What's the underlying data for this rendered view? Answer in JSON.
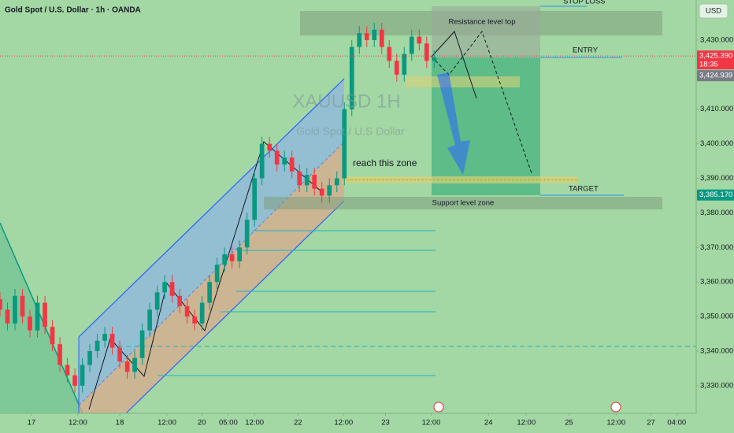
{
  "chart_data": {
    "type": "candlestick",
    "title": "Gold Spot / U.S. Dollar · 1h · OANDA",
    "watermark": "XAUUSD 1H",
    "watermark_subtitle": "Gold Spot / U.S Dollar",
    "currency": "USD",
    "countdown": "18:35",
    "up_color": "#089981",
    "down_color": "#f23645",
    "x": [
      0,
      2,
      4,
      6,
      8,
      10,
      12,
      14,
      16,
      18,
      20,
      22,
      24,
      26,
      28,
      30,
      32,
      34,
      36,
      38,
      40,
      42,
      44,
      46,
      48,
      50,
      52,
      54,
      56,
      58,
      60,
      62,
      64,
      66,
      68,
      70,
      72,
      74,
      76,
      78,
      80,
      82,
      84,
      86,
      88,
      90,
      92,
      94,
      96,
      98,
      100,
      102,
      104,
      106,
      108,
      110,
      112,
      114,
      116
    ],
    "open": [
      3355,
      3352,
      3348,
      3356,
      3350,
      3346,
      3354,
      3347,
      3342,
      3336,
      3333,
      3330,
      3336,
      3340,
      3343,
      3345,
      3341,
      3337,
      3334,
      3338,
      3346,
      3352,
      3357,
      3360,
      3356,
      3353,
      3350,
      3348,
      3354,
      3360,
      3365,
      3368,
      3366,
      3370,
      3378,
      3390,
      3400,
      3398,
      3394,
      3396,
      3392,
      3388,
      3391,
      3387,
      3385,
      3388,
      3390,
      3410,
      3428,
      3432,
      3430,
      3433,
      3428,
      3424,
      3420,
      3426,
      3431,
      3429,
      3424
    ],
    "high": [
      3357,
      3354,
      3358,
      3358,
      3352,
      3356,
      3356,
      3349,
      3344,
      3338,
      3335,
      3338,
      3342,
      3345,
      3347,
      3347,
      3343,
      3339,
      3340,
      3348,
      3354,
      3359,
      3362,
      3362,
      3358,
      3355,
      3352,
      3356,
      3362,
      3367,
      3370,
      3370,
      3372,
      3380,
      3392,
      3402,
      3402,
      3400,
      3398,
      3398,
      3394,
      3393,
      3393,
      3389,
      3390,
      3392,
      3412,
      3430,
      3434,
      3434,
      3435,
      3435,
      3430,
      3426,
      3428,
      3433,
      3433,
      3431,
      3427
    ],
    "low": [
      3350,
      3346,
      3346,
      3348,
      3344,
      3344,
      3345,
      3340,
      3334,
      3331,
      3328,
      3328,
      3334,
      3338,
      3341,
      3339,
      3335,
      3332,
      3332,
      3336,
      3344,
      3350,
      3355,
      3354,
      3351,
      3348,
      3346,
      3346,
      3352,
      3358,
      3363,
      3364,
      3364,
      3368,
      3376,
      3388,
      3396,
      3392,
      3392,
      3390,
      3386,
      3386,
      3385,
      3383,
      3383,
      3386,
      3388,
      3408,
      3426,
      3428,
      3428,
      3426,
      3422,
      3418,
      3418,
      3424,
      3427,
      3422,
      3422
    ],
    "close": [
      3352,
      3348,
      3356,
      3350,
      3346,
      3354,
      3347,
      3342,
      3336,
      3333,
      3330,
      3336,
      3340,
      3343,
      3345,
      3341,
      3337,
      3334,
      3338,
      3346,
      3352,
      3357,
      3360,
      3356,
      3353,
      3350,
      3348,
      3354,
      3360,
      3365,
      3368,
      3366,
      3370,
      3378,
      3390,
      3400,
      3398,
      3394,
      3396,
      3392,
      3388,
      3391,
      3387,
      3385,
      3388,
      3390,
      3410,
      3428,
      3432,
      3430,
      3433,
      3428,
      3424,
      3420,
      3426,
      3431,
      3429,
      3424,
      3425
    ],
    "xlim": [
      0,
      186
    ],
    "xticks": [
      {
        "value": 8.4,
        "label": "17"
      },
      {
        "value": 20.8,
        "label": "12:00"
      },
      {
        "value": 32,
        "label": "18"
      },
      {
        "value": 44.6,
        "label": "12:00"
      },
      {
        "value": 53.9,
        "label": "20"
      },
      {
        "value": 61,
        "label": "05:00"
      },
      {
        "value": 68,
        "label": "12:00"
      },
      {
        "value": 79.6,
        "label": "22"
      },
      {
        "value": 91.8,
        "label": "12:00"
      },
      {
        "value": 103,
        "label": "23"
      },
      {
        "value": 115.2,
        "label": "12:00"
      },
      {
        "value": 130.5,
        "label": "24"
      },
      {
        "value": 140.6,
        "label": "12:00"
      },
      {
        "value": 152,
        "label": "25"
      },
      {
        "value": 164.6,
        "label": "12:00"
      },
      {
        "value": 173.9,
        "label": "27"
      },
      {
        "value": 180.8,
        "label": "04:00"
      }
    ],
    "ylim": [
      3322,
      3441.6
    ],
    "yticks": [
      {
        "value": 3330,
        "label": "3,330.000"
      },
      {
        "value": 3340,
        "label": "3,340.000"
      },
      {
        "value": 3350,
        "label": "3,350.000"
      },
      {
        "value": 3360,
        "label": "3,360.000"
      },
      {
        "value": 3370,
        "label": "3,370.000"
      },
      {
        "value": 3380,
        "label": "3,380.000"
      },
      {
        "value": 3390,
        "label": "3,390.000"
      },
      {
        "value": 3400,
        "label": "3,400.000"
      },
      {
        "value": 3410,
        "label": "3,410.000"
      },
      {
        "value": 3430,
        "label": "3,430.000"
      }
    ],
    "price_labels": [
      {
        "value": 3425.39,
        "label": "3,425.390",
        "color": "#f23645"
      },
      {
        "value": 3424.939,
        "label": "3,424.939",
        "color": "#787b86"
      },
      {
        "value": 3385.17,
        "label": "3,385.170",
        "color": "#089981"
      }
    ],
    "annotations": [
      "STOP LOSS",
      "Resistance level top",
      "ENTRY",
      "reach this zone",
      "TARGET",
      "Support level zone"
    ]
  }
}
